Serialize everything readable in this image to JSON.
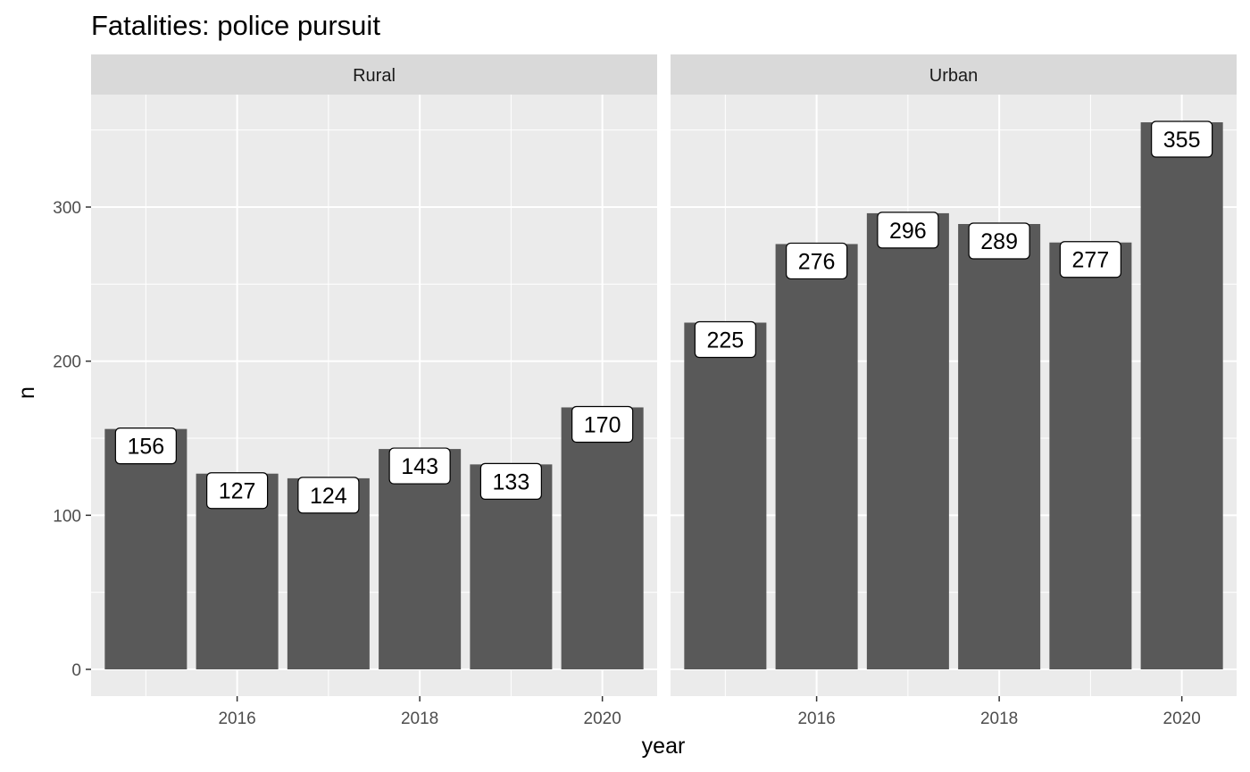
{
  "chart_data": {
    "type": "bar",
    "title": "Fatalities: police pursuit",
    "xlabel": "year",
    "ylabel": "n",
    "x": [
      2015,
      2016,
      2017,
      2018,
      2019,
      2020
    ],
    "x_ticks": [
      2016,
      2018,
      2020
    ],
    "y_ticks": [
      0,
      100,
      200,
      300
    ],
    "ylim": [
      0,
      373
    ],
    "grid": true,
    "facets": [
      {
        "name": "Rural",
        "values": [
          156,
          127,
          124,
          143,
          133,
          170
        ]
      },
      {
        "name": "Urban",
        "values": [
          225,
          276,
          296,
          289,
          277,
          355
        ]
      }
    ],
    "colors": {
      "bar": "#595959",
      "panel_bg": "#ebebeb",
      "strip_bg": "#d9d9d9",
      "grid": "#ffffff"
    }
  }
}
